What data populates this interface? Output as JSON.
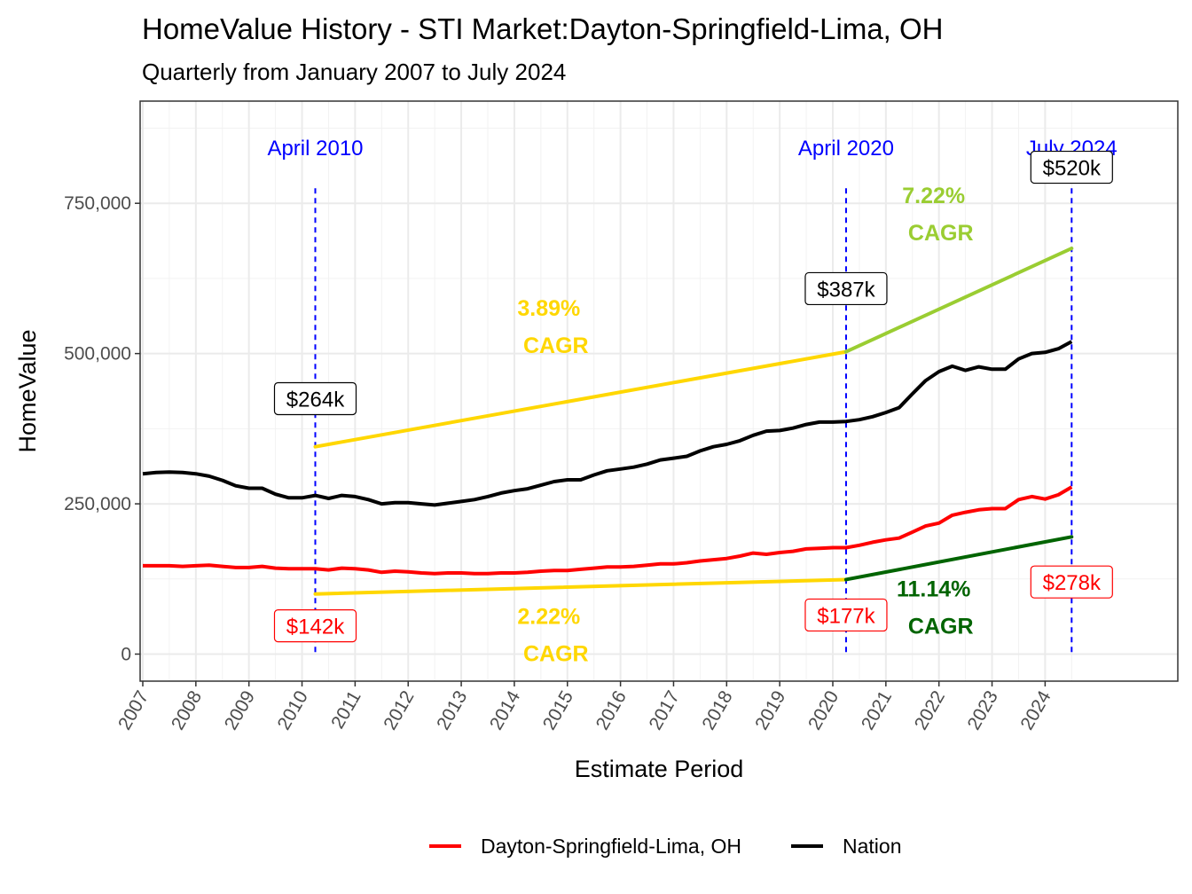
{
  "chart_data": {
    "type": "line",
    "title": "HomeValue History - STI Market:Dayton-Springfield-Lima, OH",
    "subtitle": "Quarterly from January 2007 to July 2024",
    "xlabel": "Estimate Period",
    "ylabel": "HomeValue",
    "xlim": [
      2006.95,
      2026.5
    ],
    "ylim": [
      -45000,
      920000
    ],
    "x_ticks": [
      "2007",
      "2008",
      "2009",
      "2010",
      "2011",
      "2012",
      "2013",
      "2014",
      "2015",
      "2016",
      "2017",
      "2018",
      "2019",
      "2020",
      "2021",
      "2022",
      "2023",
      "2024"
    ],
    "y_ticks": [
      {
        "value": 0,
        "label": "0"
      },
      {
        "value": 250000,
        "label": "250,000"
      },
      {
        "value": 500000,
        "label": "500,000"
      },
      {
        "value": 750000,
        "label": "750,000"
      }
    ],
    "grid": true,
    "legend_position": "bottom",
    "series": [
      {
        "name": "Dayton-Springfield-Lima, OH",
        "color": "#ff0000",
        "points": [
          [
            2007.0,
            147000
          ],
          [
            2007.25,
            147000
          ],
          [
            2007.5,
            147000
          ],
          [
            2007.75,
            146000
          ],
          [
            2008.0,
            147000
          ],
          [
            2008.25,
            148000
          ],
          [
            2008.5,
            146000
          ],
          [
            2008.75,
            144000
          ],
          [
            2009.0,
            144000
          ],
          [
            2009.25,
            146000
          ],
          [
            2009.5,
            143000
          ],
          [
            2009.75,
            142000
          ],
          [
            2010.0,
            142000
          ],
          [
            2010.25,
            142000
          ],
          [
            2010.5,
            140000
          ],
          [
            2010.75,
            143000
          ],
          [
            2011.0,
            142000
          ],
          [
            2011.25,
            140000
          ],
          [
            2011.5,
            136000
          ],
          [
            2011.75,
            138000
          ],
          [
            2012.0,
            137000
          ],
          [
            2012.25,
            135000
          ],
          [
            2012.5,
            134000
          ],
          [
            2012.75,
            135000
          ],
          [
            2013.0,
            135000
          ],
          [
            2013.25,
            134000
          ],
          [
            2013.5,
            134000
          ],
          [
            2013.75,
            135000
          ],
          [
            2014.0,
            135000
          ],
          [
            2014.25,
            136000
          ],
          [
            2014.5,
            138000
          ],
          [
            2014.75,
            139000
          ],
          [
            2015.0,
            139000
          ],
          [
            2015.25,
            141000
          ],
          [
            2015.5,
            143000
          ],
          [
            2015.75,
            145000
          ],
          [
            2016.0,
            145000
          ],
          [
            2016.25,
            146000
          ],
          [
            2016.5,
            148000
          ],
          [
            2016.75,
            150000
          ],
          [
            2017.0,
            150000
          ],
          [
            2017.25,
            152000
          ],
          [
            2017.5,
            155000
          ],
          [
            2017.75,
            157000
          ],
          [
            2018.0,
            159000
          ],
          [
            2018.25,
            163000
          ],
          [
            2018.5,
            168000
          ],
          [
            2018.75,
            166000
          ],
          [
            2019.0,
            169000
          ],
          [
            2019.25,
            171000
          ],
          [
            2019.5,
            175000
          ],
          [
            2019.75,
            176000
          ],
          [
            2020.0,
            177000
          ],
          [
            2020.25,
            177000
          ],
          [
            2020.5,
            181000
          ],
          [
            2020.75,
            186000
          ],
          [
            2021.0,
            190000
          ],
          [
            2021.25,
            193000
          ],
          [
            2021.5,
            203000
          ],
          [
            2021.75,
            213000
          ],
          [
            2022.0,
            218000
          ],
          [
            2022.25,
            231000
          ],
          [
            2022.5,
            236000
          ],
          [
            2022.75,
            240000
          ],
          [
            2023.0,
            242000
          ],
          [
            2023.25,
            242000
          ],
          [
            2023.5,
            257000
          ],
          [
            2023.75,
            262000
          ],
          [
            2024.0,
            258000
          ],
          [
            2024.25,
            265000
          ],
          [
            2024.5,
            278000
          ]
        ]
      },
      {
        "name": "Nation",
        "color": "#000000",
        "points": [
          [
            2007.0,
            300000
          ],
          [
            2007.25,
            302000
          ],
          [
            2007.5,
            303000
          ],
          [
            2007.75,
            302000
          ],
          [
            2008.0,
            300000
          ],
          [
            2008.25,
            296000
          ],
          [
            2008.5,
            289000
          ],
          [
            2008.75,
            280000
          ],
          [
            2009.0,
            276000
          ],
          [
            2009.25,
            276000
          ],
          [
            2009.5,
            266000
          ],
          [
            2009.75,
            260000
          ],
          [
            2010.0,
            260000
          ],
          [
            2010.25,
            264000
          ],
          [
            2010.5,
            259000
          ],
          [
            2010.75,
            264000
          ],
          [
            2011.0,
            262000
          ],
          [
            2011.25,
            257000
          ],
          [
            2011.5,
            250000
          ],
          [
            2011.75,
            252000
          ],
          [
            2012.0,
            252000
          ],
          [
            2012.25,
            250000
          ],
          [
            2012.5,
            248000
          ],
          [
            2012.75,
            251000
          ],
          [
            2013.0,
            254000
          ],
          [
            2013.25,
            257000
          ],
          [
            2013.5,
            262000
          ],
          [
            2013.75,
            268000
          ],
          [
            2014.0,
            272000
          ],
          [
            2014.25,
            275000
          ],
          [
            2014.5,
            281000
          ],
          [
            2014.75,
            287000
          ],
          [
            2015.0,
            290000
          ],
          [
            2015.25,
            290000
          ],
          [
            2015.5,
            298000
          ],
          [
            2015.75,
            305000
          ],
          [
            2016.0,
            308000
          ],
          [
            2016.25,
            311000
          ],
          [
            2016.5,
            316000
          ],
          [
            2016.75,
            323000
          ],
          [
            2017.0,
            326000
          ],
          [
            2017.25,
            329000
          ],
          [
            2017.5,
            338000
          ],
          [
            2017.75,
            345000
          ],
          [
            2018.0,
            349000
          ],
          [
            2018.25,
            355000
          ],
          [
            2018.5,
            364000
          ],
          [
            2018.75,
            371000
          ],
          [
            2019.0,
            372000
          ],
          [
            2019.25,
            376000
          ],
          [
            2019.5,
            382000
          ],
          [
            2019.75,
            386000
          ],
          [
            2020.0,
            386000
          ],
          [
            2020.25,
            387000
          ],
          [
            2020.5,
            390000
          ],
          [
            2020.75,
            395000
          ],
          [
            2021.0,
            402000
          ],
          [
            2021.25,
            410000
          ],
          [
            2021.5,
            433000
          ],
          [
            2021.75,
            455000
          ],
          [
            2022.0,
            470000
          ],
          [
            2022.25,
            479000
          ],
          [
            2022.5,
            472000
          ],
          [
            2022.75,
            478000
          ],
          [
            2023.0,
            474000
          ],
          [
            2023.25,
            474000
          ],
          [
            2023.5,
            491000
          ],
          [
            2023.75,
            500000
          ],
          [
            2024.0,
            502000
          ],
          [
            2024.25,
            508000
          ],
          [
            2024.5,
            520000
          ]
        ]
      }
    ],
    "cagr_segments": [
      {
        "from": [
          2010.25,
          345000
        ],
        "to": [
          2020.25,
          503000
        ],
        "color": "#ffd700"
      },
      {
        "from": [
          2020.25,
          503000
        ],
        "to": [
          2024.5,
          675000
        ],
        "color": "#9acd32"
      },
      {
        "from": [
          2010.25,
          100000
        ],
        "to": [
          2020.25,
          124000
        ],
        "color": "#ffd700"
      },
      {
        "from": [
          2020.25,
          124000
        ],
        "to": [
          2024.5,
          195000
        ],
        "color": "#006400"
      }
    ],
    "vlines": [
      {
        "x": 2010.25,
        "label": "April 2010"
      },
      {
        "x": 2020.25,
        "label": "April 2020"
      },
      {
        "x": 2024.5,
        "label": "July 2024"
      }
    ],
    "cagr_labels": [
      {
        "x": 2014.65,
        "y": 563000,
        "pct": "3.89%",
        "word": "CAGR",
        "color": "#ffd700"
      },
      {
        "x": 2021.9,
        "y": 750000,
        "pct": "7.22%",
        "word": "CAGR",
        "color": "#9acd32"
      },
      {
        "x": 2014.65,
        "y": 50000,
        "pct": "2.22%",
        "word": "CAGR",
        "color": "#ffd700"
      },
      {
        "x": 2021.9,
        "y": 96000,
        "pct": "11.14%",
        "word": "CAGR",
        "color": "#006400"
      }
    ],
    "value_labels": [
      {
        "x": 2010.25,
        "y": 425000,
        "text": "$264k",
        "color": "#000000"
      },
      {
        "x": 2020.25,
        "y": 608000,
        "text": "$387k",
        "color": "#000000"
      },
      {
        "x": 2024.5,
        "y": 810000,
        "text": "$520k",
        "color": "#000000"
      },
      {
        "x": 2010.25,
        "y": 47000,
        "text": "$142k",
        "color": "#ff0000"
      },
      {
        "x": 2020.25,
        "y": 65000,
        "text": "$177k",
        "color": "#ff0000"
      },
      {
        "x": 2024.5,
        "y": 120000,
        "text": "$278k",
        "color": "#ff0000"
      }
    ]
  }
}
